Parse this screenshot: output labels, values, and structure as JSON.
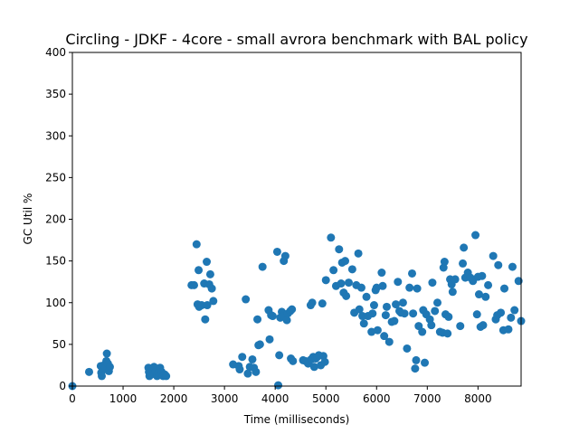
{
  "chart_data": {
    "type": "scatter",
    "title": "Circling - JDKF - 4core -  small avrora benchmark with BAL policy",
    "xlabel": "Time (milliseconds)",
    "ylabel": "GC Util %",
    "xlim": [
      0,
      8850
    ],
    "ylim": [
      0,
      400
    ],
    "xticks": [
      0,
      1000,
      2000,
      3000,
      4000,
      5000,
      6000,
      7000,
      8000
    ],
    "yticks": [
      0,
      50,
      100,
      150,
      200,
      250,
      300,
      350,
      400
    ],
    "grid": false,
    "marker_color": "#1f77b4",
    "series": [
      {
        "points": [
          [
            0,
            0
          ],
          [
            330,
            17
          ],
          [
            560,
            24
          ],
          [
            570,
            16
          ],
          [
            580,
            12
          ],
          [
            600,
            20
          ],
          [
            620,
            25
          ],
          [
            650,
            22
          ],
          [
            670,
            30
          ],
          [
            680,
            39
          ],
          [
            700,
            27
          ],
          [
            720,
            18
          ],
          [
            740,
            23
          ],
          [
            1500,
            22
          ],
          [
            1510,
            17
          ],
          [
            1520,
            12
          ],
          [
            1560,
            14
          ],
          [
            1590,
            20
          ],
          [
            1610,
            23
          ],
          [
            1640,
            17
          ],
          [
            1670,
            12
          ],
          [
            1700,
            16
          ],
          [
            1730,
            22
          ],
          [
            1760,
            17
          ],
          [
            1790,
            12
          ],
          [
            1820,
            14
          ],
          [
            1850,
            12
          ],
          [
            2350,
            121
          ],
          [
            2400,
            121
          ],
          [
            2450,
            170
          ],
          [
            2470,
            98
          ],
          [
            2490,
            139
          ],
          [
            2500,
            95
          ],
          [
            2550,
            97
          ],
          [
            2600,
            123
          ],
          [
            2620,
            80
          ],
          [
            2650,
            149
          ],
          [
            2660,
            97
          ],
          [
            2700,
            122
          ],
          [
            2720,
            134
          ],
          [
            2750,
            117
          ],
          [
            2780,
            102
          ],
          [
            3170,
            26
          ],
          [
            3280,
            24
          ],
          [
            3300,
            20
          ],
          [
            3350,
            35
          ],
          [
            3420,
            104
          ],
          [
            3460,
            15
          ],
          [
            3500,
            23
          ],
          [
            3550,
            32
          ],
          [
            3580,
            22
          ],
          [
            3620,
            17
          ],
          [
            3650,
            80
          ],
          [
            3670,
            49
          ],
          [
            3700,
            50
          ],
          [
            3750,
            143
          ],
          [
            3870,
            91
          ],
          [
            3890,
            56
          ],
          [
            3920,
            85
          ],
          [
            3950,
            84
          ],
          [
            4040,
            161
          ],
          [
            4060,
            1
          ],
          [
            4080,
            37
          ],
          [
            4100,
            82
          ],
          [
            4130,
            89
          ],
          [
            4150,
            84
          ],
          [
            4170,
            150
          ],
          [
            4200,
            156
          ],
          [
            4230,
            79
          ],
          [
            4250,
            87
          ],
          [
            4300,
            90
          ],
          [
            4310,
            33
          ],
          [
            4330,
            92
          ],
          [
            4350,
            30
          ],
          [
            4550,
            31
          ],
          [
            4600,
            30
          ],
          [
            4650,
            27
          ],
          [
            4700,
            97
          ],
          [
            4710,
            32
          ],
          [
            4730,
            100
          ],
          [
            4750,
            35
          ],
          [
            4770,
            23
          ],
          [
            4800,
            33
          ],
          [
            4830,
            35
          ],
          [
            4860,
            37
          ],
          [
            4900,
            25
          ],
          [
            4930,
            99
          ],
          [
            4950,
            36
          ],
          [
            4980,
            29
          ],
          [
            5000,
            127
          ],
          [
            5100,
            178
          ],
          [
            5150,
            139
          ],
          [
            5200,
            120
          ],
          [
            5260,
            164
          ],
          [
            5300,
            123
          ],
          [
            5320,
            148
          ],
          [
            5350,
            112
          ],
          [
            5380,
            150
          ],
          [
            5400,
            108
          ],
          [
            5450,
            124
          ],
          [
            5520,
            140
          ],
          [
            5560,
            88
          ],
          [
            5600,
            121
          ],
          [
            5640,
            159
          ],
          [
            5660,
            92
          ],
          [
            5700,
            118
          ],
          [
            5720,
            84
          ],
          [
            5750,
            75
          ],
          [
            5800,
            107
          ],
          [
            5830,
            84
          ],
          [
            5900,
            65
          ],
          [
            5920,
            87
          ],
          [
            5950,
            97
          ],
          [
            5980,
            115
          ],
          [
            6000,
            118
          ],
          [
            6020,
            67
          ],
          [
            6100,
            136
          ],
          [
            6120,
            120
          ],
          [
            6150,
            60
          ],
          [
            6180,
            85
          ],
          [
            6200,
            95
          ],
          [
            6250,
            53
          ],
          [
            6300,
            77
          ],
          [
            6350,
            78
          ],
          [
            6380,
            98
          ],
          [
            6420,
            125
          ],
          [
            6450,
            90
          ],
          [
            6480,
            88
          ],
          [
            6520,
            100
          ],
          [
            6550,
            87
          ],
          [
            6600,
            45
          ],
          [
            6650,
            118
          ],
          [
            6700,
            135
          ],
          [
            6720,
            87
          ],
          [
            6760,
            21
          ],
          [
            6780,
            31
          ],
          [
            6800,
            117
          ],
          [
            6830,
            72
          ],
          [
            6900,
            65
          ],
          [
            6920,
            91
          ],
          [
            6950,
            28
          ],
          [
            6980,
            86
          ],
          [
            7050,
            80
          ],
          [
            7080,
            73
          ],
          [
            7100,
            124
          ],
          [
            7150,
            90
          ],
          [
            7200,
            100
          ],
          [
            7250,
            65
          ],
          [
            7300,
            64
          ],
          [
            7320,
            142
          ],
          [
            7340,
            149
          ],
          [
            7360,
            86
          ],
          [
            7400,
            63
          ],
          [
            7420,
            83
          ],
          [
            7450,
            128
          ],
          [
            7480,
            122
          ],
          [
            7500,
            113
          ],
          [
            7550,
            128
          ],
          [
            7650,
            72
          ],
          [
            7700,
            147
          ],
          [
            7720,
            166
          ],
          [
            7750,
            130
          ],
          [
            7800,
            136
          ],
          [
            7850,
            130
          ],
          [
            7900,
            126
          ],
          [
            7950,
            181
          ],
          [
            7980,
            86
          ],
          [
            8000,
            131
          ],
          [
            8020,
            110
          ],
          [
            8050,
            71
          ],
          [
            8080,
            132
          ],
          [
            8100,
            73
          ],
          [
            8150,
            107
          ],
          [
            8200,
            121
          ],
          [
            8300,
            156
          ],
          [
            8350,
            80
          ],
          [
            8380,
            85
          ],
          [
            8400,
            145
          ],
          [
            8450,
            88
          ],
          [
            8500,
            67
          ],
          [
            8520,
            117
          ],
          [
            8600,
            68
          ],
          [
            8650,
            82
          ],
          [
            8680,
            143
          ],
          [
            8720,
            91
          ],
          [
            8800,
            126
          ],
          [
            8850,
            78
          ]
        ]
      }
    ]
  }
}
